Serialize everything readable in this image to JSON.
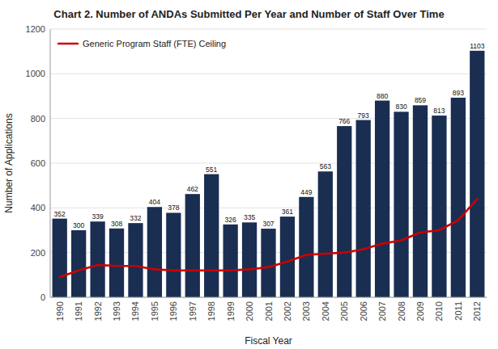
{
  "chart_data": {
    "type": "bar",
    "title": "Chart 2.  Number of ANDAs Submitted Per Year and Number of Staff Over Time",
    "xlabel": "Fiscal Year",
    "ylabel": "Number of Applications",
    "categories": [
      "1990",
      "1991",
      "1992",
      "1993",
      "1994",
      "1995",
      "1996",
      "1997",
      "1998",
      "1999",
      "2000",
      "2001",
      "2002",
      "2003",
      "2004",
      "2005",
      "2006",
      "2007",
      "2008",
      "2009",
      "2010",
      "2011",
      "2012"
    ],
    "series": [
      {
        "type": "bar",
        "color": "#1a2e52",
        "data_labels": true,
        "values": [
          352,
          300,
          339,
          308,
          332,
          404,
          378,
          462,
          551,
          326,
          335,
          307,
          361,
          449,
          563,
          766,
          793,
          880,
          830,
          859,
          813,
          893,
          1103
        ]
      },
      {
        "name": "Generic Program Staff (FTE) Ceiling",
        "type": "line",
        "color": "#cc0000",
        "values": [
          90,
          120,
          145,
          140,
          140,
          125,
          120,
          120,
          120,
          120,
          125,
          135,
          160,
          190,
          195,
          200,
          215,
          240,
          255,
          290,
          300,
          345,
          440
        ]
      }
    ],
    "ylim": [
      0,
      1200
    ],
    "yticks": [
      0,
      200,
      400,
      600,
      800,
      1000,
      1200
    ],
    "grid": true,
    "legend": "upper left"
  }
}
